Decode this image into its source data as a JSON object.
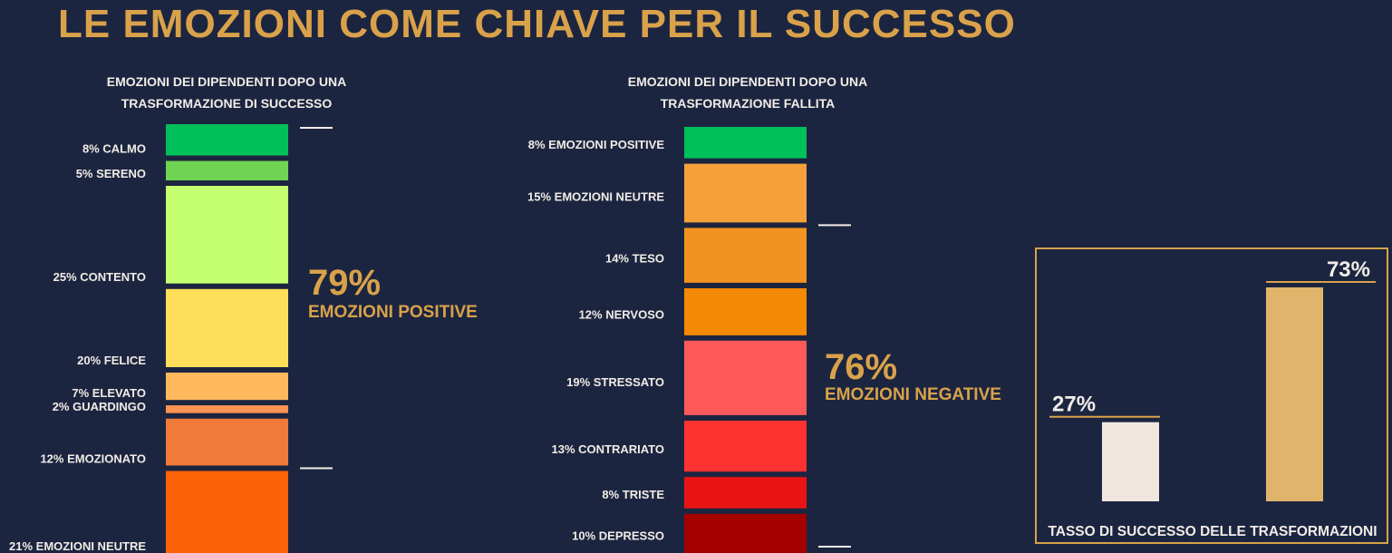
{
  "title": "LE EMOZIONI COME CHIAVE PER IL SUCCESSO",
  "chart_data": [
    {
      "type": "bar",
      "stacked": true,
      "title": "EMOZIONI DEI DIPENDENTI DOPO UNA TRASFORMAZIONE DI SUCCESSO",
      "title_lines": [
        "EMOZIONI DEI DIPENDENTI DOPO UNA",
        "TRASFORMAZIONE DI SUCCESSO"
      ],
      "unit": "%",
      "segments": [
        {
          "label": "8% CALMO",
          "value": 8,
          "color": "#00c05a"
        },
        {
          "label": "5% SERENO",
          "value": 5,
          "color": "#6fd453"
        },
        {
          "label": "25% CONTENTO",
          "value": 25,
          "color": "#c3ff6e"
        },
        {
          "label": "20% FELICE",
          "value": 20,
          "color": "#ffdf5a"
        },
        {
          "label": "7% ELEVATO",
          "value": 7,
          "color": "#ffb95c"
        },
        {
          "label": "2% GUARDINGO",
          "value": 2,
          "color": "#ff9352"
        },
        {
          "label": "12% EMOZIONATO",
          "value": 12,
          "color": "#f07a3a"
        },
        {
          "label": "21% EMOZIONI NEUTRE",
          "value": 21,
          "color": "#fb6306"
        }
      ],
      "bracket": {
        "value": "79%",
        "label": "EMOZIONI POSITIVE",
        "sum_of_first": 79
      }
    },
    {
      "type": "bar",
      "stacked": true,
      "title": "EMOZIONI DEI DIPENDENTI DOPO UNA TRASFORMAZIONE FALLITA",
      "title_lines": [
        "EMOZIONI DEI DIPENDENTI DOPO UNA",
        "TRASFORMAZIONE FALLITA"
      ],
      "unit": "%",
      "segments": [
        {
          "label": "8% EMOZIONI POSITIVE",
          "value": 8,
          "color": "#00c05a"
        },
        {
          "label": "15% EMOZIONI NEUTRE",
          "value": 15,
          "color": "#f5a03a"
        },
        {
          "label": "14% TESO",
          "value": 14,
          "color": "#f2931f"
        },
        {
          "label": "12% NERVOSO",
          "value": 12,
          "color": "#f48905"
        },
        {
          "label": "19% STRESSATO",
          "value": 19,
          "color": "#ff5a5a"
        },
        {
          "label": "13% CONTRARIATO",
          "value": 13,
          "color": "#ff3232"
        },
        {
          "label": "8% TRISTE",
          "value": 8,
          "color": "#e81414"
        },
        {
          "label": "10% DEPRESSO",
          "value": 10,
          "color": "#a40000"
        }
      ],
      "bracket": {
        "value": "76%",
        "label": "EMOZIONI NEGATIVE",
        "sum_of_last": 76
      }
    },
    {
      "type": "bar",
      "title": "TASSO DI SUCCESSO DELLE TRASFORMAZIONI",
      "unit": "%",
      "values": [
        27,
        73
      ],
      "value_labels": [
        "27%",
        "73%"
      ],
      "colors": [
        "#f0e6df",
        "#e1b46c"
      ],
      "ylim": [
        0,
        73
      ]
    }
  ]
}
